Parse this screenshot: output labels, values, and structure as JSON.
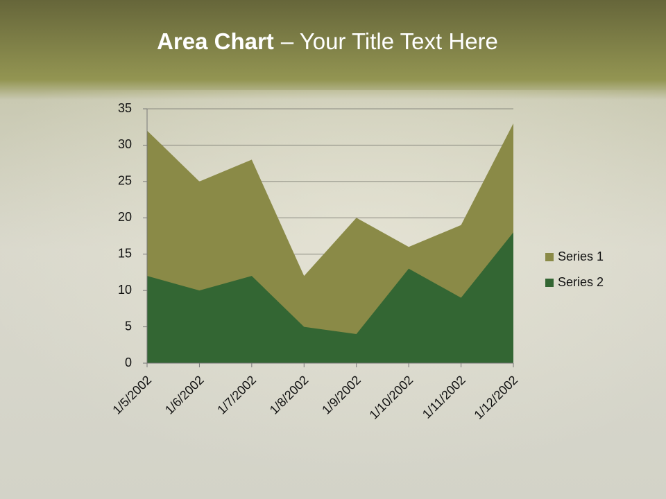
{
  "chart_data": {
    "type": "area",
    "title_emphasis": "Area Chart",
    "title": "– Your Title Text Here",
    "categories": [
      "1/5/2002",
      "1/6/2002",
      "1/7/2002",
      "1/8/2002",
      "1/9/2002",
      "1/10/2002",
      "1/11/2002",
      "1/12/2002"
    ],
    "series": [
      {
        "name": "Series 1",
        "color": "#8a8a47",
        "values": [
          32,
          25,
          28,
          12,
          20,
          16,
          19,
          33
        ]
      },
      {
        "name": "Series 2",
        "color": "#336633",
        "values": [
          12,
          10,
          12,
          5,
          4,
          13,
          9,
          18
        ]
      }
    ],
    "ylim": [
      0,
      35
    ],
    "yticks": [
      0,
      5,
      10,
      15,
      20,
      25,
      30,
      35
    ],
    "grid": true,
    "legend": "right"
  }
}
